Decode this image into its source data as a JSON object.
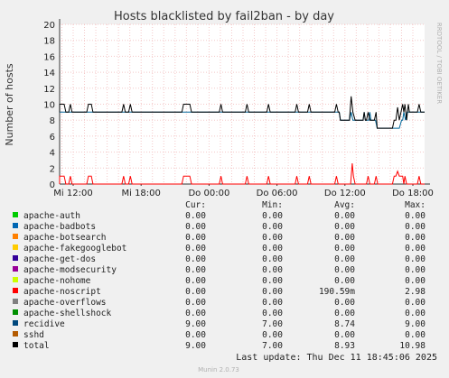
{
  "chart_data": {
    "type": "line",
    "title": "Hosts blacklisted by fail2ban - by day",
    "ylabel": "Number of hosts",
    "watermark": "RRDTOOL / TOBI OETIKER",
    "ylim": [
      0,
      20
    ],
    "yticks": [
      0,
      2,
      4,
      6,
      8,
      10,
      12,
      14,
      16,
      18,
      20
    ],
    "x_range": [
      0,
      33
    ],
    "xtick_labels": [
      {
        "x": 3,
        "label": "Mi 12:00"
      },
      {
        "x": 9,
        "label": "Mi 18:00"
      },
      {
        "x": 15,
        "label": "Do 00:00"
      },
      {
        "x": 21,
        "label": "Do 06:00"
      },
      {
        "x": 27,
        "label": "Do 12:00"
      },
      {
        "x": 33,
        "label": "Do 18:00"
      }
    ],
    "grid": true,
    "series": [
      {
        "name": "noscript",
        "color": "#ff0000",
        "points": [
          [
            0,
            0
          ],
          [
            0.4,
            0
          ],
          [
            0.55,
            1
          ],
          [
            0.7,
            0
          ],
          [
            1.5,
            0
          ],
          [
            1.65,
            1
          ],
          [
            2.2,
            1
          ],
          [
            2.35,
            0
          ],
          [
            2.6,
            0
          ],
          [
            2.75,
            1
          ],
          [
            2.9,
            0
          ],
          [
            4.2,
            0
          ],
          [
            4.35,
            1
          ],
          [
            4.6,
            1
          ],
          [
            4.75,
            0
          ],
          [
            7.3,
            0
          ],
          [
            7.45,
            1
          ],
          [
            7.6,
            0
          ],
          [
            7.9,
            0
          ],
          [
            8.05,
            1
          ],
          [
            8.2,
            0
          ],
          [
            12.6,
            0
          ],
          [
            12.75,
            1
          ],
          [
            13.3,
            1
          ],
          [
            13.45,
            0
          ],
          [
            15.9,
            0
          ],
          [
            16.05,
            1
          ],
          [
            16.2,
            0
          ],
          [
            18.2,
            0
          ],
          [
            18.35,
            1
          ],
          [
            18.5,
            0
          ],
          [
            20.1,
            0
          ],
          [
            20.25,
            1
          ],
          [
            20.4,
            0
          ],
          [
            22.6,
            0
          ],
          [
            22.75,
            1
          ],
          [
            22.9,
            0
          ],
          [
            23.7,
            0
          ],
          [
            23.85,
            1
          ],
          [
            24.0,
            0
          ],
          [
            26.1,
            0
          ],
          [
            26.25,
            1
          ],
          [
            26.4,
            0
          ],
          [
            27.5,
            0
          ],
          [
            27.65,
            2.6
          ],
          [
            27.75,
            1
          ],
          [
            27.9,
            0
          ],
          [
            28.9,
            0
          ],
          [
            29.05,
            1
          ],
          [
            29.2,
            0
          ],
          [
            29.6,
            0
          ],
          [
            29.75,
            1
          ],
          [
            29.9,
            0
          ],
          [
            31.2,
            0
          ],
          [
            31.35,
            1
          ],
          [
            31.5,
            1
          ],
          [
            31.65,
            1.6
          ],
          [
            31.8,
            1
          ],
          [
            32.1,
            1
          ],
          [
            32.2,
            0
          ],
          [
            32.3,
            1
          ],
          [
            32.45,
            0
          ],
          [
            33.4,
            0
          ],
          [
            33.55,
            1
          ],
          [
            33.7,
            0
          ],
          [
            34.2,
            0
          ]
        ]
      },
      {
        "name": "recidive",
        "color": "#006699",
        "points": [
          [
            0,
            9
          ],
          [
            26.5,
            9
          ],
          [
            26.6,
            8
          ],
          [
            27.4,
            8
          ],
          [
            27.55,
            9
          ],
          [
            27.7,
            8
          ],
          [
            28.6,
            8
          ],
          [
            28.7,
            9
          ],
          [
            28.8,
            8
          ],
          [
            29.1,
            8
          ],
          [
            29.2,
            9
          ],
          [
            29.3,
            8
          ],
          [
            29.7,
            8
          ],
          [
            29.85,
            7
          ],
          [
            31.8,
            7
          ],
          [
            32.0,
            8
          ],
          [
            32.1,
            8
          ],
          [
            32.2,
            9
          ],
          [
            32.35,
            8
          ],
          [
            32.5,
            9
          ],
          [
            32.7,
            9
          ],
          [
            32.8,
            9
          ],
          [
            34.2,
            9
          ]
        ]
      },
      {
        "name": "total",
        "color": "#000000",
        "points": [
          [
            0,
            9
          ],
          [
            0.4,
            9
          ],
          [
            0.55,
            10
          ],
          [
            0.7,
            9
          ],
          [
            1.5,
            9
          ],
          [
            1.65,
            10
          ],
          [
            2.2,
            10
          ],
          [
            2.35,
            9
          ],
          [
            2.6,
            9
          ],
          [
            2.75,
            10
          ],
          [
            2.9,
            9
          ],
          [
            4.2,
            9
          ],
          [
            4.35,
            10
          ],
          [
            4.6,
            10
          ],
          [
            4.75,
            9
          ],
          [
            7.3,
            9
          ],
          [
            7.45,
            10
          ],
          [
            7.6,
            9
          ],
          [
            7.9,
            9
          ],
          [
            8.05,
            10
          ],
          [
            8.2,
            9
          ],
          [
            12.6,
            9
          ],
          [
            12.75,
            10
          ],
          [
            13.3,
            10
          ],
          [
            13.45,
            9
          ],
          [
            15.9,
            9
          ],
          [
            16.05,
            10
          ],
          [
            16.2,
            9
          ],
          [
            18.2,
            9
          ],
          [
            18.35,
            10
          ],
          [
            18.5,
            9
          ],
          [
            20.1,
            9
          ],
          [
            20.25,
            10
          ],
          [
            20.4,
            9
          ],
          [
            22.6,
            9
          ],
          [
            22.75,
            10
          ],
          [
            22.9,
            9
          ],
          [
            23.7,
            9
          ],
          [
            23.85,
            10
          ],
          [
            24.0,
            9
          ],
          [
            26.1,
            9
          ],
          [
            26.25,
            10
          ],
          [
            26.4,
            9
          ],
          [
            26.5,
            9
          ],
          [
            26.6,
            8
          ],
          [
            27.4,
            8
          ],
          [
            27.55,
            10.98
          ],
          [
            27.7,
            9
          ],
          [
            27.9,
            8
          ],
          [
            28.6,
            8
          ],
          [
            28.7,
            9
          ],
          [
            28.8,
            8
          ],
          [
            28.9,
            8
          ],
          [
            29.05,
            9
          ],
          [
            29.2,
            8
          ],
          [
            29.3,
            8
          ],
          [
            29.6,
            8
          ],
          [
            29.75,
            9
          ],
          [
            29.85,
            7
          ],
          [
            31.2,
            7
          ],
          [
            31.35,
            8
          ],
          [
            31.5,
            8
          ],
          [
            31.65,
            9.6
          ],
          [
            31.8,
            8
          ],
          [
            32.1,
            10
          ],
          [
            32.2,
            9
          ],
          [
            32.3,
            10
          ],
          [
            32.45,
            8
          ],
          [
            32.6,
            10
          ],
          [
            32.7,
            9
          ],
          [
            33.4,
            9
          ],
          [
            33.55,
            10
          ],
          [
            33.7,
            9
          ],
          [
            34.2,
            9
          ]
        ]
      }
    ]
  },
  "legend": {
    "headers": {
      "cur": "Cur:",
      "min": "Min:",
      "avg": "Avg:",
      "max": "Max:"
    },
    "rows": [
      {
        "name": "apache-auth",
        "color": "#00cc00",
        "cur": "0.00",
        "min": "0.00",
        "avg": "0.00",
        "max": "0.00"
      },
      {
        "name": "apache-badbots",
        "color": "#0066b3",
        "cur": "0.00",
        "min": "0.00",
        "avg": "0.00",
        "max": "0.00"
      },
      {
        "name": "apache-botsearch",
        "color": "#ff8000",
        "cur": "0.00",
        "min": "0.00",
        "avg": "0.00",
        "max": "0.00"
      },
      {
        "name": "apache-fakegooglebot",
        "color": "#ffcc00",
        "cur": "0.00",
        "min": "0.00",
        "avg": "0.00",
        "max": "0.00"
      },
      {
        "name": "apache-get-dos",
        "color": "#330099",
        "cur": "0.00",
        "min": "0.00",
        "avg": "0.00",
        "max": "0.00"
      },
      {
        "name": "apache-modsecurity",
        "color": "#990099",
        "cur": "0.00",
        "min": "0.00",
        "avg": "0.00",
        "max": "0.00"
      },
      {
        "name": "apache-nohome",
        "color": "#ccff00",
        "cur": "0.00",
        "min": "0.00",
        "avg": "0.00",
        "max": "0.00"
      },
      {
        "name": "apache-noscript",
        "color": "#ff0000",
        "cur": "0.00",
        "min": "0.00",
        "avg": "190.59m",
        "max": "2.98"
      },
      {
        "name": "apache-overflows",
        "color": "#808080",
        "cur": "0.00",
        "min": "0.00",
        "avg": "0.00",
        "max": "0.00"
      },
      {
        "name": "apache-shellshock",
        "color": "#008f00",
        "cur": "0.00",
        "min": "0.00",
        "avg": "0.00",
        "max": "0.00"
      },
      {
        "name": "recidive",
        "color": "#00487d",
        "cur": "9.00",
        "min": "7.00",
        "avg": "8.74",
        "max": "9.00"
      },
      {
        "name": "sshd",
        "color": "#b35a00",
        "cur": "0.00",
        "min": "0.00",
        "avg": "0.00",
        "max": "0.00"
      },
      {
        "name": "total",
        "color": "#000000",
        "cur": "9.00",
        "min": "7.00",
        "avg": "8.93",
        "max": "10.98"
      }
    ]
  },
  "footer": {
    "last_update": "Last update: Thu Dec 11 18:45:06 2025",
    "munin_version": "Munin 2.0.73"
  }
}
